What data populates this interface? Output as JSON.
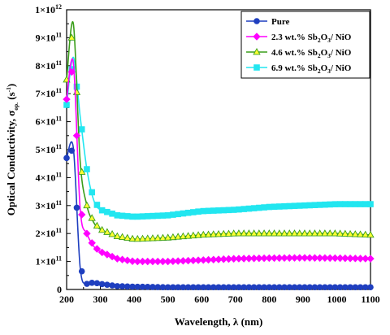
{
  "chart_data": {
    "type": "line",
    "xlabel": "Wavelength, λ (nm)",
    "ylabel_main": "Optical Conductivity, σ",
    "ylabel_sub": "op.",
    "ylabel_unit_open": " (s",
    "ylabel_unit_sup": "-1",
    "ylabel_unit_close": ")",
    "xlim": [
      200,
      1100
    ],
    "ylim": [
      0,
      1000000000000.0
    ],
    "x_ticks": [
      200,
      300,
      400,
      500,
      600,
      700,
      800,
      900,
      1000,
      1100
    ],
    "y_ticks": [
      {
        "value": 0,
        "mant": "0",
        "exp": ""
      },
      {
        "value": 100000000000.0,
        "mant": "1×10",
        "exp": "11"
      },
      {
        "value": 200000000000.0,
        "mant": "2×10",
        "exp": "11"
      },
      {
        "value": 300000000000.0,
        "mant": "3×10",
        "exp": "11"
      },
      {
        "value": 400000000000.0,
        "mant": "4×10",
        "exp": "11"
      },
      {
        "value": 500000000000.0,
        "mant": "5×10",
        "exp": "11"
      },
      {
        "value": 600000000000.0,
        "mant": "6×10",
        "exp": "11"
      },
      {
        "value": 700000000000.0,
        "mant": "7×10",
        "exp": "11"
      },
      {
        "value": 800000000000.0,
        "mant": "8×10",
        "exp": "11"
      },
      {
        "value": 900000000000.0,
        "mant": "9×10",
        "exp": "11"
      },
      {
        "value": 1000000000000.0,
        "mant": "1×10",
        "exp": "12"
      }
    ],
    "legend_position": "top-right",
    "series": [
      {
        "name": "Pure",
        "legend": {
          "a": "Pure",
          "sub": "",
          "b": ""
        },
        "color": "#1f3fbf",
        "marker": "circle",
        "x": [
          200,
          220,
          240,
          260,
          280,
          300,
          350,
          400,
          500,
          600,
          700,
          800,
          900,
          1000,
          1100
        ],
        "y": [
          470000000000.0,
          505000000000.0,
          80000000000.0,
          20000000000.0,
          25000000000.0,
          20000000000.0,
          12000000000.0,
          10000000000.0,
          8000000000.0,
          8000000000.0,
          8000000000.0,
          8000000000.0,
          8000000000.0,
          8000000000.0,
          8000000000.0
        ]
      },
      {
        "name": "2.3 wt.% Sb2O3/ NiO",
        "legend": {
          "a": "2.3 wt.% Sb",
          "sub": "2",
          "b": "O",
          "sub2": "3",
          "c": "/ NiO"
        },
        "color": "#ff00ff",
        "marker": "diamond",
        "x": [
          200,
          220,
          240,
          260,
          280,
          300,
          350,
          400,
          500,
          600,
          700,
          800,
          900,
          1000,
          1100
        ],
        "y": [
          680000000000.0,
          810000000000.0,
          290000000000.0,
          200000000000.0,
          155000000000.0,
          135000000000.0,
          110000000000.0,
          100000000000.0,
          100000000000.0,
          105000000000.0,
          110000000000.0,
          112000000000.0,
          113000000000.0,
          112000000000.0,
          110000000000.0
        ]
      },
      {
        "name": "4.6 wt.% Sb2O3/ NiO",
        "legend": {
          "a": "4.6 wt.% Sb",
          "sub": "2",
          "b": "O",
          "sub2": "3",
          "c": "/ NiO"
        },
        "color": "#3a9e1a",
        "markerFill": "#ffff33",
        "marker": "triangle",
        "x": [
          200,
          220,
          240,
          260,
          280,
          300,
          350,
          400,
          500,
          600,
          700,
          800,
          900,
          1000,
          1100
        ],
        "y": [
          750000000000.0,
          950000000000.0,
          460000000000.0,
          300000000000.0,
          240000000000.0,
          215000000000.0,
          190000000000.0,
          180000000000.0,
          185000000000.0,
          195000000000.0,
          200000000000.0,
          200000000000.0,
          200000000000.0,
          200000000000.0,
          195000000000.0
        ]
      },
      {
        "name": "6.9 wt.% Sb2O3/ NiO",
        "legend": {
          "a": "6.9 wt.% Sb",
          "sub": "2",
          "b": "O",
          "sub2": "3",
          "c": "/ NiO"
        },
        "color": "#22e6f0",
        "marker": "square",
        "x": [
          200,
          220,
          240,
          260,
          280,
          300,
          350,
          400,
          500,
          600,
          700,
          800,
          900,
          1000,
          1100
        ],
        "y": [
          660000000000.0,
          830000000000.0,
          620000000000.0,
          430000000000.0,
          320000000000.0,
          285000000000.0,
          265000000000.0,
          260000000000.0,
          265000000000.0,
          280000000000.0,
          285000000000.0,
          295000000000.0,
          300000000000.0,
          305000000000.0,
          305000000000.0
        ]
      }
    ]
  }
}
